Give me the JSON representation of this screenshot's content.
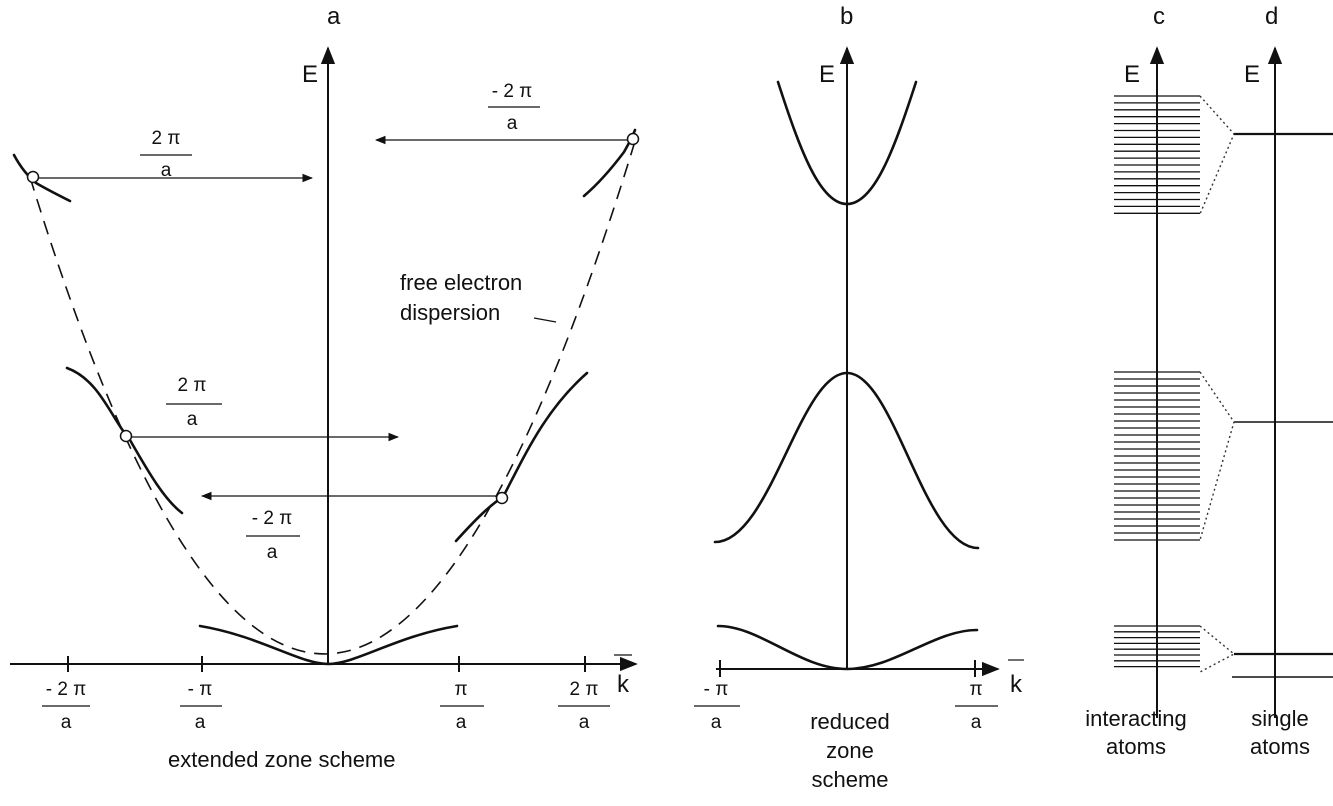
{
  "panels": {
    "a": {
      "letter": "a",
      "axis_energy": "E",
      "axis_k": "k",
      "caption": "extended zone scheme",
      "annotation_line1": "free electron",
      "annotation_line2": "dispersion",
      "tick_labels": [
        {
          "num": "- 2 π",
          "den": "a"
        },
        {
          "num": "- π",
          "den": "a"
        },
        {
          "num": "π",
          "den": "a"
        },
        {
          "num": "2 π",
          "den": "a"
        }
      ],
      "shift_labels": [
        {
          "num": "2 π",
          "den": "a"
        },
        {
          "num": "- 2 π",
          "den": "a"
        },
        {
          "num": "2 π",
          "den": "a"
        },
        {
          "num": "- 2 π",
          "den": "a"
        }
      ]
    },
    "b": {
      "letter": "b",
      "axis_energy": "E",
      "axis_k": "k",
      "caption_line1": "reduced",
      "caption_line2": "zone",
      "caption_line3": "scheme",
      "tick_labels": [
        {
          "num": "- π",
          "den": "a"
        },
        {
          "num": "π",
          "den": "a"
        }
      ]
    },
    "c": {
      "letter": "c",
      "axis_energy": "E",
      "caption_line1": "interacting",
      "caption_line2": "atoms"
    },
    "d": {
      "letter": "d",
      "axis_energy": "E",
      "caption_line1": "single",
      "caption_line2": "atoms"
    }
  }
}
